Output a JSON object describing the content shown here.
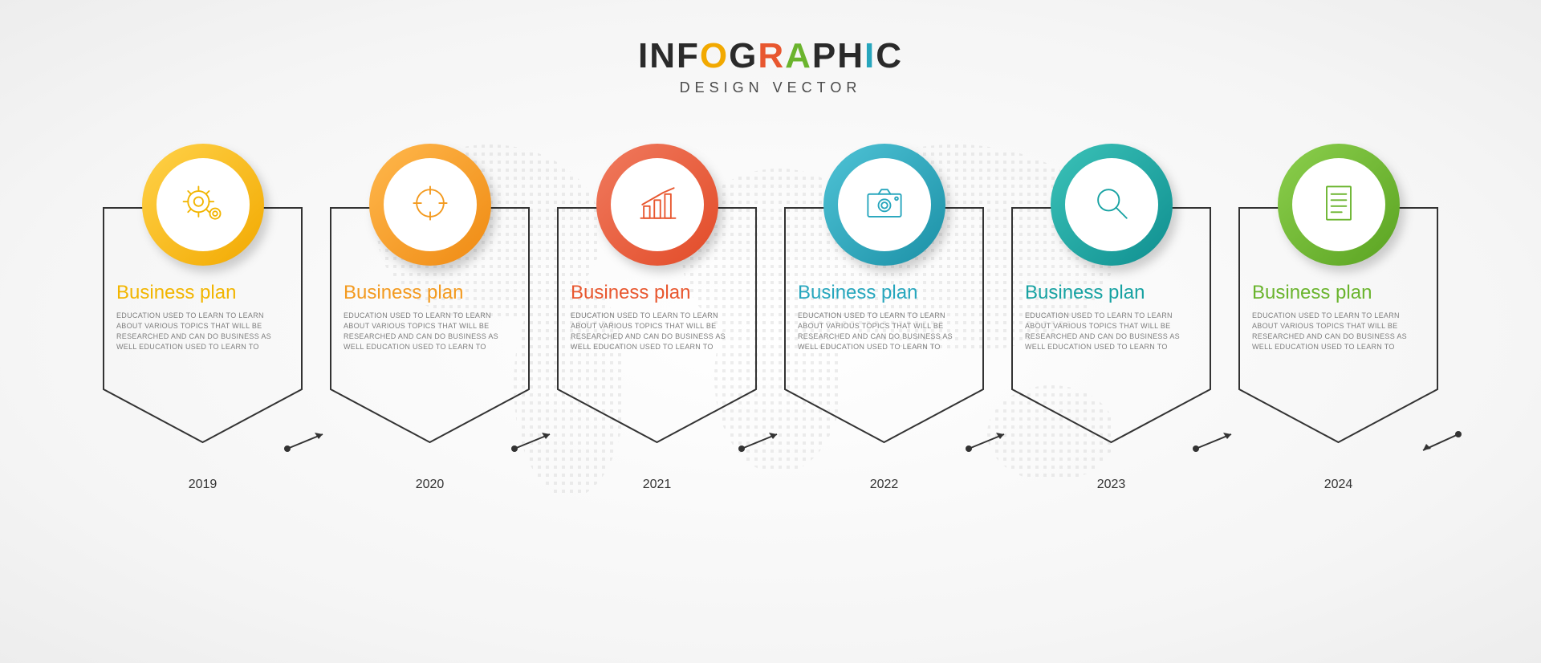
{
  "title": {
    "letters": [
      {
        "char": "I",
        "color": "#2a2a2a"
      },
      {
        "char": "N",
        "color": "#2a2a2a"
      },
      {
        "char": "F",
        "color": "#2a2a2a"
      },
      {
        "char": "O",
        "color": "#f2a900"
      },
      {
        "char": "G",
        "color": "#2a2a2a"
      },
      {
        "char": "R",
        "color": "#e8572f"
      },
      {
        "char": "A",
        "color": "#6ab42d"
      },
      {
        "char": "P",
        "color": "#2a2a2a"
      },
      {
        "char": "H",
        "color": "#2a2a2a"
      },
      {
        "char": "I",
        "color": "#27a6bd"
      },
      {
        "char": "C",
        "color": "#2a2a2a"
      }
    ],
    "font_size": 44
  },
  "subtitle": "DESIGN  VECTOR",
  "background": {
    "world_map_dot_color": "#bcbcbc",
    "page_bg_center": "#ffffff",
    "page_bg_edge": "#ededed"
  },
  "shield": {
    "stroke_color": "#333333",
    "stroke_width": 2,
    "ring_outer_diameter": 152,
    "ring_thickness": 18,
    "ring_inner_bg": "#ffffff"
  },
  "connector": {
    "stroke_color": "#333333"
  },
  "items": [
    {
      "year": "2019",
      "heading": "Business plan",
      "heading_color": "#f2b500",
      "ring_gradient_from": "#ffd24a",
      "ring_gradient_to": "#f2a900",
      "icon": "gears",
      "icon_color": "#f2b500",
      "desc": "EDUCATION USED TO LEARN  TO LEARN ABOUT VARIOUS TOPICS THAT WILL BE RESEARCHED AND CAN DO BUSINESS AS WELL EDUCATION USED TO LEARN  TO"
    },
    {
      "year": "2020",
      "heading": "Business plan",
      "heading_color": "#f39a1f",
      "ring_gradient_from": "#ffb84d",
      "ring_gradient_to": "#ef8a12",
      "icon": "target",
      "icon_color": "#f39a1f",
      "desc": "EDUCATION USED TO LEARN  TO LEARN ABOUT VARIOUS TOPICS THAT WILL BE RESEARCHED AND CAN DO BUSINESS AS WELL EDUCATION USED TO LEARN  TO"
    },
    {
      "year": "2021",
      "heading": "Business plan",
      "heading_color": "#e8572f",
      "ring_gradient_from": "#f07a5e",
      "ring_gradient_to": "#e24b28",
      "icon": "bar-chart",
      "icon_color": "#e8572f",
      "desc": "EDUCATION USED TO LEARN  TO LEARN ABOUT VARIOUS TOPICS THAT WILL BE RESEARCHED AND CAN DO BUSINESS AS WELL EDUCATION USED TO LEARN  TO"
    },
    {
      "year": "2022",
      "heading": "Business plan",
      "heading_color": "#27a6bd",
      "ring_gradient_from": "#4fc3d6",
      "ring_gradient_to": "#1b90a6",
      "icon": "camera",
      "icon_color": "#27a6bd",
      "desc": "EDUCATION USED TO LEARN  TO LEARN ABOUT VARIOUS TOPICS THAT WILL BE RESEARCHED AND CAN DO BUSINESS AS WELL EDUCATION USED TO LEARN  TO"
    },
    {
      "year": "2023",
      "heading": "Business plan",
      "heading_color": "#17a2a2",
      "ring_gradient_from": "#3bc2b8",
      "ring_gradient_to": "#0f8f90",
      "icon": "magnifier",
      "icon_color": "#17a2a2",
      "desc": "EDUCATION USED TO LEARN  TO LEARN ABOUT VARIOUS TOPICS THAT WILL BE RESEARCHED AND CAN DO BUSINESS AS WELL EDUCATION USED TO LEARN  TO"
    },
    {
      "year": "2024",
      "heading": "Business plan",
      "heading_color": "#6ab42d",
      "ring_gradient_from": "#8ccf4d",
      "ring_gradient_to": "#5aa321",
      "icon": "document",
      "icon_color": "#6ab42d",
      "desc": "EDUCATION USED TO LEARN  TO LEARN ABOUT VARIOUS TOPICS THAT WILL BE RESEARCHED AND CAN DO BUSINESS AS WELL EDUCATION USED TO LEARN  TO"
    }
  ]
}
